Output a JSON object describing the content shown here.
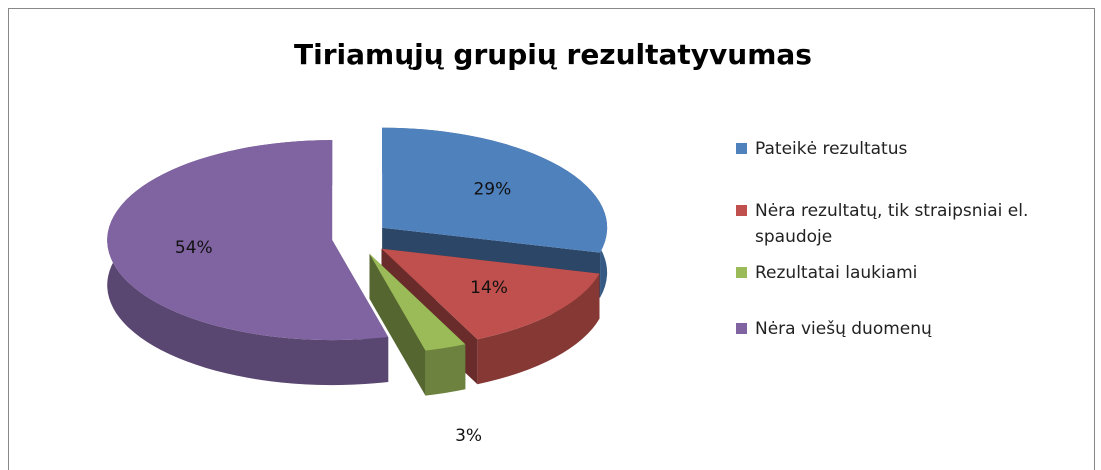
{
  "chart_data": {
    "type": "pie",
    "title": "Tiriamųjų grupių rezultatyvumas",
    "categories": [
      "Pateikė rezultatus",
      "Nėra rezultatų, tik straipsniai el. spaudoje",
      "Rezultatai laukiami",
      "Nėra viešų duomenų"
    ],
    "values": [
      29,
      14,
      3,
      54
    ],
    "value_labels": [
      "29%",
      "14%",
      "3%",
      "54%"
    ],
    "colors": [
      "#4f81bd",
      "#c0504d",
      "#9bbb59",
      "#8064a2"
    ],
    "legend": "right"
  }
}
